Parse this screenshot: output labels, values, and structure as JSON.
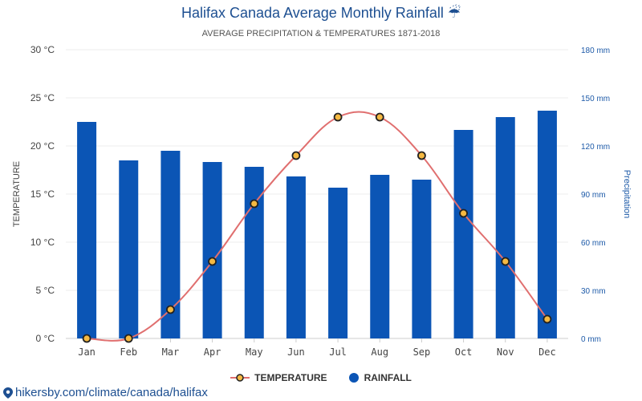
{
  "title": "Halifax Canada Average Monthly Rainfall",
  "title_icon": "umbrella-icon",
  "subtitle": "AVERAGE PRECIPITATION & TEMPERATURES 1871-2018",
  "footer": {
    "icon": "location-pin-icon",
    "text": "hikersby.com/climate/canada/halifax"
  },
  "colors": {
    "bar": "#0b55b5",
    "line": "#e06f6f",
    "marker_fill": "#f5b942",
    "marker_stroke": "#222222"
  },
  "chart_data": {
    "type": "bar",
    "categories": [
      "Jan",
      "Feb",
      "Mar",
      "Apr",
      "May",
      "Jun",
      "Jul",
      "Aug",
      "Sep",
      "Oct",
      "Nov",
      "Dec"
    ],
    "series": [
      {
        "name": "RAINFALL",
        "type": "bar",
        "axis": "right",
        "unit": "mm",
        "values": [
          135,
          111,
          117,
          110,
          107,
          101,
          94,
          102,
          99,
          130,
          138,
          142
        ]
      },
      {
        "name": "TEMPERATURE",
        "type": "line",
        "axis": "left",
        "unit": "°C",
        "values": [
          0,
          0,
          3,
          8,
          14,
          19,
          23,
          23,
          19,
          13,
          8,
          2
        ]
      }
    ],
    "y_left": {
      "label": "TEMPERATURE",
      "range": [
        0,
        30
      ],
      "ticks": [
        "0 °C",
        "5 °C",
        "10 °C",
        "15 °C",
        "20 °C",
        "25 °C",
        "30 °C"
      ]
    },
    "y_right": {
      "label": "Precipitation",
      "range": [
        0,
        180
      ],
      "ticks": [
        "0 mm",
        "30 mm",
        "60 mm",
        "90 mm",
        "120 mm",
        "150 mm",
        "180 mm"
      ]
    },
    "legend": [
      {
        "label": "TEMPERATURE",
        "marker": "line-dot"
      },
      {
        "label": "RAINFALL",
        "marker": "circle"
      }
    ],
    "legend_position": "bottom",
    "grid": true
  }
}
